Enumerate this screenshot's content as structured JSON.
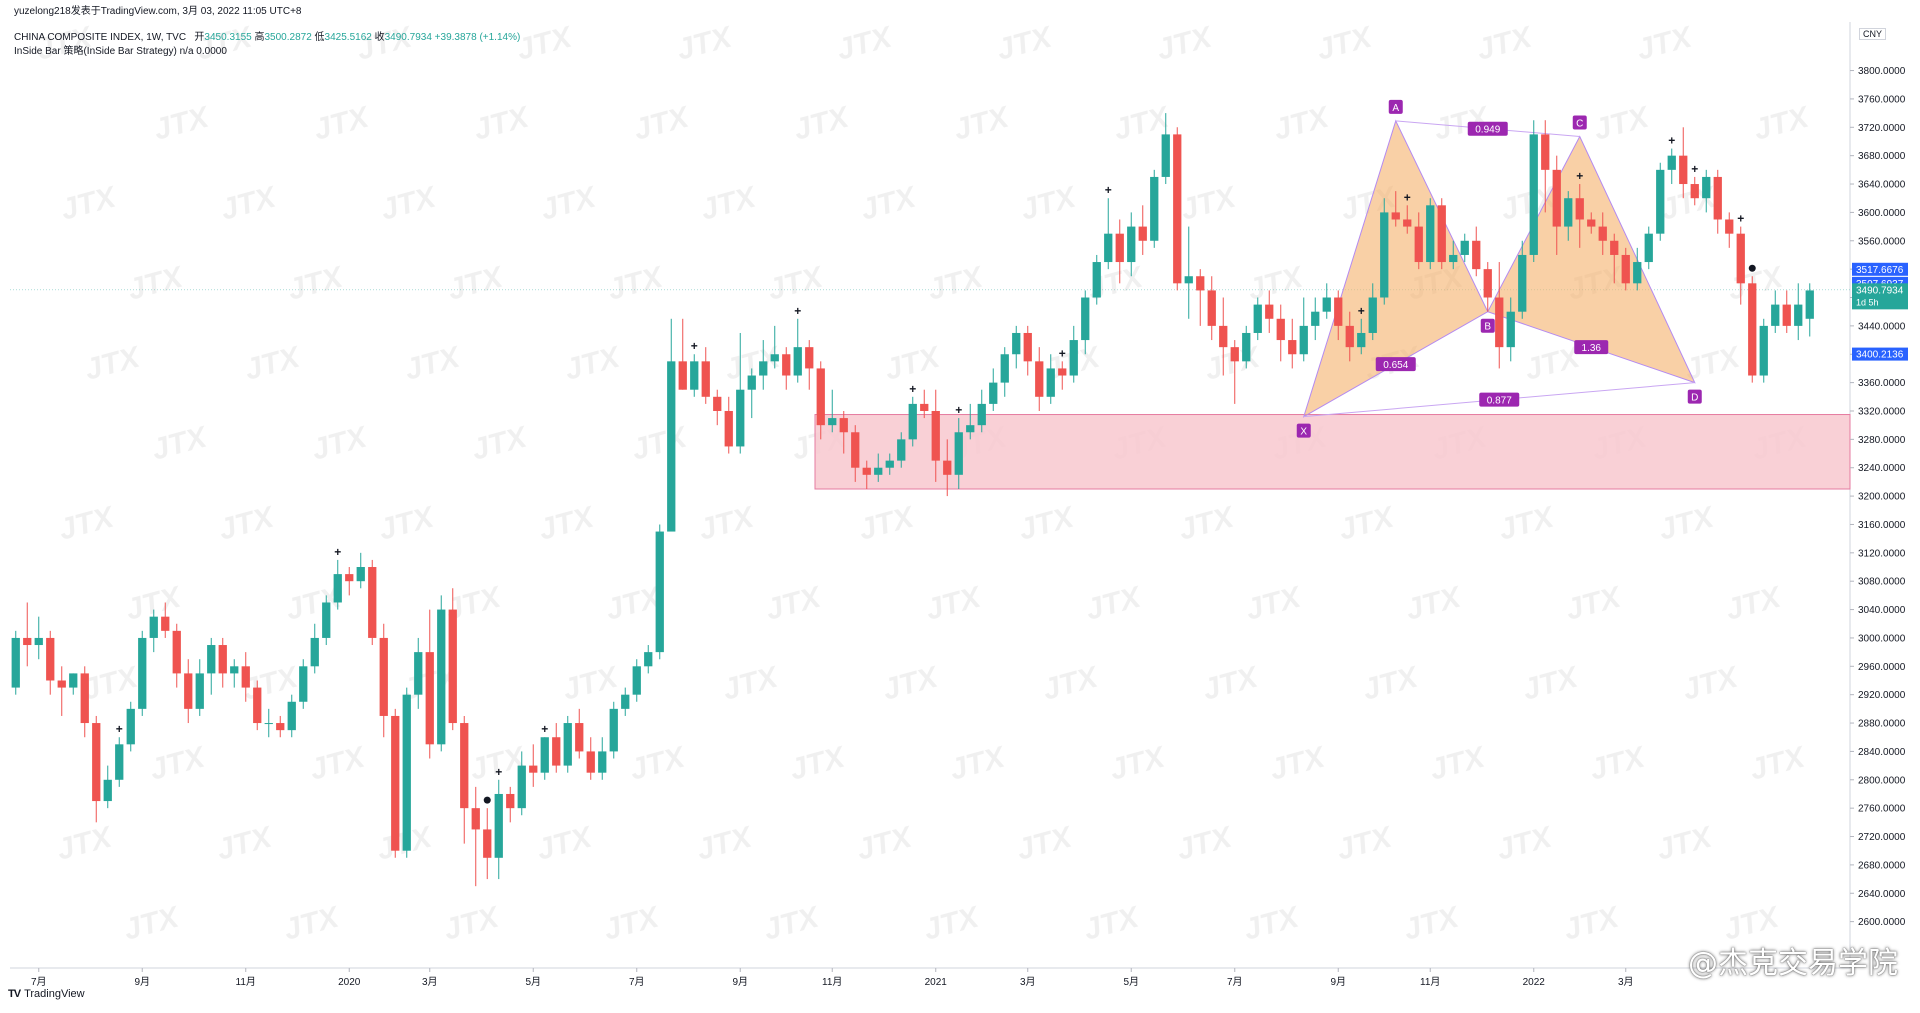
{
  "header": {
    "credit": "yuzelong218发表于TradingView.com, 3月 03, 2022 11:05 UTC+8",
    "symbol_line": "CHINA COMPOSITE INDEX, 1W, TVC",
    "ohlc": {
      "open_label": "开",
      "open": "3450.3155",
      "high_label": "高",
      "high": "3500.2872",
      "low_label": "低",
      "low": "3425.5162",
      "close_label": "收",
      "close": "3490.7934",
      "change": "+39.3878 (+1.14%)"
    },
    "strategy_line": "InSide Bar 策略(InSide Bar Strategy)  n/a  0.0000"
  },
  "currency_badge": "CNY",
  "watermark_text": "JTX",
  "brand": {
    "logo": "TV",
    "name": "TradingView"
  },
  "weibo_mark": "@杰克交易学院",
  "colors": {
    "up": "#26a69a",
    "down": "#ef5350",
    "zone": "#f8c8cf",
    "harmonic": "#f5b06b",
    "pattern_label": "#9c27b0",
    "price_badge": "#2962ff"
  },
  "chart_data": {
    "type": "candlestick",
    "instrument": "CHINA COMPOSITE INDEX",
    "timeframe": "1W",
    "ylim": [
      2560,
      3860
    ],
    "y_ticks": [
      2600,
      2640,
      2680,
      2720,
      2760,
      2800,
      2840,
      2880,
      2920,
      2960,
      3000,
      3040,
      3080,
      3120,
      3160,
      3200,
      3240,
      3280,
      3320,
      3360,
      3400,
      3440,
      3480,
      3520,
      3560,
      3600,
      3640,
      3680,
      3720,
      3760,
      3800
    ],
    "x_ticks": [
      {
        "label": "7月",
        "index": 2
      },
      {
        "label": "9月",
        "index": 11
      },
      {
        "label": "11月",
        "index": 20
      },
      {
        "label": "2020",
        "index": 29
      },
      {
        "label": "3月",
        "index": 36
      },
      {
        "label": "5月",
        "index": 45
      },
      {
        "label": "7月",
        "index": 54
      },
      {
        "label": "9月",
        "index": 63
      },
      {
        "label": "11月",
        "index": 71
      },
      {
        "label": "2021",
        "index": 80
      },
      {
        "label": "3月",
        "index": 88
      },
      {
        "label": "5月",
        "index": 97
      },
      {
        "label": "7月",
        "index": 106
      },
      {
        "label": "9月",
        "index": 115
      },
      {
        "label": "11月",
        "index": 123
      },
      {
        "label": "2022",
        "index": 132
      },
      {
        "label": "3月",
        "index": 140
      }
    ],
    "candles": [
      [
        2930,
        3000,
        3010,
        2920
      ],
      [
        3000,
        2990,
        3050,
        2960
      ],
      [
        2990,
        3000,
        3030,
        2970
      ],
      [
        3000,
        2940,
        3010,
        2920
      ],
      [
        2940,
        2930,
        2960,
        2890
      ],
      [
        2930,
        2950,
        2950,
        2920
      ],
      [
        2950,
        2880,
        2960,
        2860
      ],
      [
        2880,
        2770,
        2890,
        2740
      ],
      [
        2770,
        2800,
        2820,
        2760
      ],
      [
        2800,
        2850,
        2860,
        2790
      ],
      [
        2850,
        2900,
        2910,
        2840
      ],
      [
        2900,
        3000,
        3010,
        2890
      ],
      [
        3000,
        3030,
        3040,
        2980
      ],
      [
        3030,
        3010,
        3050,
        3000
      ],
      [
        3010,
        2950,
        3020,
        2930
      ],
      [
        2950,
        2900,
        2970,
        2880
      ],
      [
        2900,
        2950,
        2970,
        2890
      ],
      [
        2950,
        2990,
        3000,
        2920
      ],
      [
        2990,
        2950,
        3000,
        2930
      ],
      [
        2950,
        2960,
        2970,
        2930
      ],
      [
        2960,
        2930,
        2980,
        2910
      ],
      [
        2930,
        2880,
        2940,
        2870
      ],
      [
        2880,
        2880,
        2900,
        2860
      ],
      [
        2880,
        2870,
        2890,
        2860
      ],
      [
        2870,
        2910,
        2920,
        2860
      ],
      [
        2910,
        2960,
        2970,
        2900
      ],
      [
        2960,
        3000,
        3020,
        2950
      ],
      [
        3000,
        3050,
        3060,
        2990
      ],
      [
        3050,
        3090,
        3110,
        3040
      ],
      [
        3090,
        3080,
        3100,
        3060
      ],
      [
        3080,
        3100,
        3120,
        3070
      ],
      [
        3100,
        3000,
        3110,
        2990
      ],
      [
        3000,
        2890,
        3020,
        2860
      ],
      [
        2890,
        2700,
        2900,
        2690
      ],
      [
        2700,
        2920,
        2930,
        2690
      ],
      [
        2920,
        2980,
        3000,
        2900
      ],
      [
        2980,
        2850,
        3040,
        2830
      ],
      [
        2850,
        3040,
        3060,
        2840
      ],
      [
        3040,
        2880,
        3070,
        2870
      ],
      [
        2880,
        2760,
        2890,
        2710
      ],
      [
        2760,
        2730,
        2790,
        2650
      ],
      [
        2730,
        2690,
        2760,
        2660
      ],
      [
        2690,
        2780,
        2800,
        2660
      ],
      [
        2780,
        2760,
        2790,
        2740
      ],
      [
        2760,
        2820,
        2840,
        2750
      ],
      [
        2820,
        2810,
        2850,
        2790
      ],
      [
        2810,
        2860,
        2860,
        2800
      ],
      [
        2860,
        2820,
        2880,
        2810
      ],
      [
        2820,
        2880,
        2890,
        2810
      ],
      [
        2880,
        2840,
        2900,
        2830
      ],
      [
        2840,
        2810,
        2860,
        2800
      ],
      [
        2810,
        2840,
        2860,
        2800
      ],
      [
        2840,
        2900,
        2910,
        2830
      ],
      [
        2900,
        2920,
        2930,
        2890
      ],
      [
        2920,
        2960,
        2970,
        2910
      ],
      [
        2960,
        2980,
        2990,
        2950
      ],
      [
        2980,
        3150,
        3160,
        2970
      ],
      [
        3150,
        3390,
        3450,
        3380
      ],
      [
        3390,
        3350,
        3450,
        3350
      ],
      [
        3350,
        3390,
        3400,
        3340
      ],
      [
        3390,
        3340,
        3410,
        3330
      ],
      [
        3340,
        3320,
        3350,
        3300
      ],
      [
        3320,
        3270,
        3340,
        3260
      ],
      [
        3270,
        3350,
        3430,
        3260
      ],
      [
        3350,
        3370,
        3380,
        3310
      ],
      [
        3370,
        3390,
        3420,
        3350
      ],
      [
        3390,
        3400,
        3440,
        3380
      ],
      [
        3400,
        3370,
        3410,
        3350
      ],
      [
        3370,
        3410,
        3450,
        3360
      ],
      [
        3410,
        3380,
        3420,
        3350
      ],
      [
        3380,
        3300,
        3390,
        3280
      ],
      [
        3300,
        3310,
        3350,
        3290
      ],
      [
        3310,
        3290,
        3320,
        3260
      ],
      [
        3290,
        3240,
        3300,
        3220
      ],
      [
        3240,
        3230,
        3250,
        3210
      ],
      [
        3230,
        3240,
        3260,
        3220
      ],
      [
        3240,
        3250,
        3260,
        3230
      ],
      [
        3250,
        3280,
        3290,
        3240
      ],
      [
        3280,
        3330,
        3340,
        3270
      ],
      [
        3330,
        3320,
        3350,
        3310
      ],
      [
        3320,
        3250,
        3350,
        3220
      ],
      [
        3250,
        3230,
        3280,
        3200
      ],
      [
        3230,
        3290,
        3310,
        3210
      ],
      [
        3290,
        3300,
        3330,
        3280
      ],
      [
        3300,
        3330,
        3350,
        3290
      ],
      [
        3330,
        3360,
        3380,
        3320
      ],
      [
        3360,
        3400,
        3410,
        3340
      ],
      [
        3400,
        3430,
        3440,
        3380
      ],
      [
        3430,
        3390,
        3440,
        3370
      ],
      [
        3390,
        3340,
        3410,
        3320
      ],
      [
        3340,
        3380,
        3400,
        3330
      ],
      [
        3380,
        3370,
        3390,
        3350
      ],
      [
        3370,
        3420,
        3440,
        3360
      ],
      [
        3420,
        3480,
        3490,
        3400
      ],
      [
        3480,
        3530,
        3540,
        3470
      ],
      [
        3530,
        3570,
        3620,
        3520
      ],
      [
        3570,
        3530,
        3590,
        3500
      ],
      [
        3530,
        3580,
        3600,
        3510
      ],
      [
        3580,
        3560,
        3610,
        3540
      ],
      [
        3560,
        3650,
        3660,
        3550
      ],
      [
        3650,
        3710,
        3740,
        3640
      ],
      [
        3710,
        3500,
        3720,
        3490
      ],
      [
        3500,
        3510,
        3580,
        3450
      ],
      [
        3510,
        3490,
        3520,
        3440
      ],
      [
        3490,
        3440,
        3510,
        3420
      ],
      [
        3440,
        3410,
        3480,
        3370
      ],
      [
        3410,
        3390,
        3420,
        3330
      ],
      [
        3390,
        3430,
        3440,
        3380
      ],
      [
        3430,
        3470,
        3480,
        3420
      ],
      [
        3470,
        3450,
        3490,
        3430
      ],
      [
        3450,
        3420,
        3470,
        3390
      ],
      [
        3420,
        3400,
        3450,
        3380
      ],
      [
        3400,
        3440,
        3480,
        3390
      ],
      [
        3440,
        3460,
        3480,
        3420
      ],
      [
        3460,
        3480,
        3500,
        3450
      ],
      [
        3480,
        3440,
        3490,
        3420
      ],
      [
        3440,
        3410,
        3460,
        3390
      ],
      [
        3410,
        3430,
        3450,
        3400
      ],
      [
        3430,
        3480,
        3500,
        3420
      ],
      [
        3480,
        3600,
        3620,
        3470
      ],
      [
        3600,
        3590,
        3630,
        3580
      ],
      [
        3590,
        3580,
        3610,
        3570
      ],
      [
        3580,
        3530,
        3600,
        3520
      ],
      [
        3530,
        3610,
        3620,
        3520
      ],
      [
        3610,
        3530,
        3620,
        3520
      ],
      [
        3530,
        3540,
        3560,
        3520
      ],
      [
        3540,
        3560,
        3570,
        3530
      ],
      [
        3560,
        3520,
        3580,
        3510
      ],
      [
        3520,
        3480,
        3530,
        3460
      ],
      [
        3480,
        3410,
        3530,
        3380
      ],
      [
        3410,
        3460,
        3480,
        3390
      ],
      [
        3460,
        3540,
        3560,
        3450
      ],
      [
        3540,
        3710,
        3730,
        3530
      ],
      [
        3710,
        3660,
        3730,
        3600
      ],
      [
        3660,
        3580,
        3680,
        3540
      ],
      [
        3580,
        3620,
        3630,
        3560
      ],
      [
        3620,
        3590,
        3640,
        3550
      ],
      [
        3590,
        3580,
        3600,
        3570
      ],
      [
        3580,
        3560,
        3600,
        3540
      ],
      [
        3560,
        3540,
        3570,
        3500
      ],
      [
        3540,
        3500,
        3550,
        3490
      ],
      [
        3500,
        3530,
        3550,
        3490
      ],
      [
        3530,
        3570,
        3580,
        3520
      ],
      [
        3570,
        3660,
        3670,
        3560
      ],
      [
        3660,
        3680,
        3690,
        3640
      ],
      [
        3680,
        3640,
        3720,
        3620
      ],
      [
        3640,
        3620,
        3650,
        3610
      ],
      [
        3620,
        3650,
        3660,
        3600
      ],
      [
        3650,
        3590,
        3660,
        3570
      ],
      [
        3590,
        3570,
        3600,
        3550
      ],
      [
        3570,
        3500,
        3580,
        3470
      ],
      [
        3500,
        3370,
        3510,
        3360
      ],
      [
        3370,
        3440,
        3450,
        3360
      ],
      [
        3440,
        3470,
        3490,
        3430
      ],
      [
        3470,
        3440,
        3490,
        3430
      ],
      [
        3440,
        3470,
        3500,
        3420
      ],
      [
        3450,
        3490,
        3500,
        3425
      ]
    ],
    "demand_zone": {
      "from_index": 70,
      "high": 3315,
      "low": 3210
    },
    "harmonic_pattern": {
      "points": [
        {
          "label": "X",
          "index": 112,
          "price": 3312
        },
        {
          "label": "A",
          "index": 120,
          "price": 3729
        },
        {
          "label": "B",
          "index": 128,
          "price": 3460
        },
        {
          "label": "C",
          "index": 136,
          "price": 3707
        },
        {
          "label": "D",
          "index": 146,
          "price": 3360
        }
      ],
      "ratios": [
        {
          "label": "0.949",
          "from": "A",
          "to": "C"
        },
        {
          "label": "0.654",
          "from": "X",
          "to": "B"
        },
        {
          "label": "1.36",
          "from": "B",
          "to": "D"
        },
        {
          "label": "0.877",
          "from": "X",
          "to": "D"
        }
      ]
    },
    "price_labels": [
      {
        "value": "3517.6676",
        "price": 3517.67
      },
      {
        "value": "3507.6937",
        "price": 3507.69
      },
      {
        "value": "3490.7934",
        "price": 3490.79,
        "sub": "1d 5h"
      },
      {
        "value": "3400.2136",
        "price": 3400.21
      }
    ],
    "signal_markers": [
      {
        "index": 9,
        "type": "plus"
      },
      {
        "index": 28,
        "type": "plus"
      },
      {
        "index": 42,
        "type": "plus"
      },
      {
        "index": 41,
        "type": "dot"
      },
      {
        "index": 46,
        "type": "plus"
      },
      {
        "index": 59,
        "type": "plus"
      },
      {
        "index": 68,
        "type": "plus"
      },
      {
        "index": 78,
        "type": "plus"
      },
      {
        "index": 82,
        "type": "plus"
      },
      {
        "index": 91,
        "type": "plus"
      },
      {
        "index": 95,
        "type": "plus"
      },
      {
        "index": 117,
        "type": "plus"
      },
      {
        "index": 121,
        "type": "plus"
      },
      {
        "index": 136,
        "type": "plus"
      },
      {
        "index": 144,
        "type": "plus"
      },
      {
        "index": 146,
        "type": "plus"
      },
      {
        "index": 150,
        "type": "plus"
      },
      {
        "index": 151,
        "type": "dot"
      }
    ]
  }
}
